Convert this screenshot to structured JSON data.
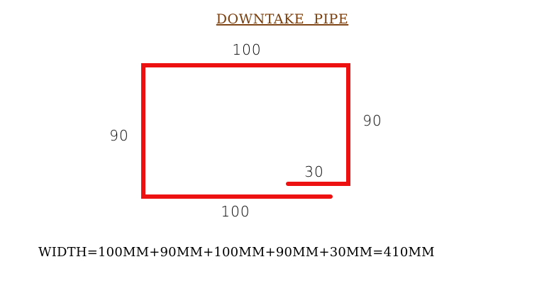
{
  "title": "DOWNTAKE  PIPE",
  "dimensions": {
    "top": "100",
    "left": "90",
    "right": "90",
    "bottom": "100",
    "return": "30"
  },
  "formula": "WIDTH=100MM+90MM+100MM+90MM+30MM=410MM",
  "colors": {
    "title": "#7a3e0c",
    "pipe": "#ee1111",
    "text": "#000000"
  }
}
